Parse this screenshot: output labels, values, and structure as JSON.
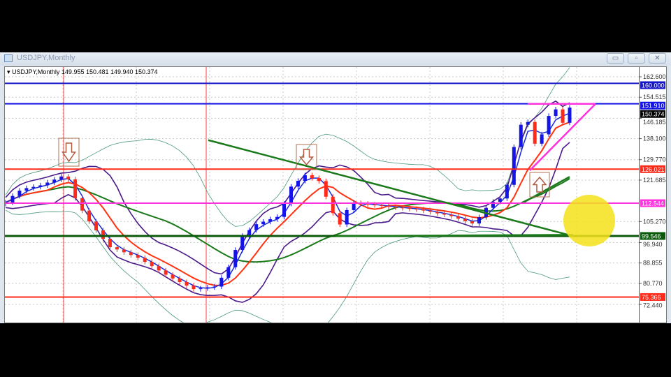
{
  "window": {
    "title": "USDJPY,Monthly",
    "buttons": {
      "minimize": "▭",
      "restore": "▫",
      "close": "✕"
    }
  },
  "header": {
    "symbol": "USDJPY,Monthly",
    "ohlc": "149.955 150.481 149.940 150.374"
  },
  "colors": {
    "up": "#1414e6",
    "down": "#ff2a1a",
    "ma_fast": "#1a2bd6",
    "ma_mid": "#ff3311",
    "ma_slow": "#1a7a1a",
    "band": "#4a9a78",
    "envelope": "#4b1a8a"
  },
  "chart_data": {
    "type": "candlestick",
    "title": "USDJPY,Monthly",
    "ylim": [
      64.355,
      166
    ],
    "y_ticks": [
      162.6,
      154.515,
      146.185,
      138.1,
      129.77,
      121.685,
      105.27,
      96.94,
      88.855,
      80.77,
      72.44
    ],
    "current_price": 150.374,
    "close": [
      112.8,
      115.4,
      117.5,
      118.5,
      119.0,
      119.6,
      120.7,
      121.9,
      123.1,
      122.0,
      114.5,
      109.6,
      105.3,
      101.8,
      98.4,
      95.1,
      94.2,
      93.1,
      92.0,
      90.9,
      89.3,
      87.6,
      85.9,
      84.2,
      82.7,
      81.3,
      79.9,
      78.5,
      78.8,
      79.2,
      79.5,
      83.0,
      87.2,
      94.0,
      99.6,
      101.9,
      104.2,
      105.2,
      106.2,
      107.1,
      112.3,
      119.1,
      121.4,
      123.6,
      122.5,
      121.3,
      115.1,
      108.6,
      104.1,
      109.8,
      112.6,
      112.3,
      112.0,
      111.7,
      111.5,
      111.1,
      110.8,
      110.6,
      110.3,
      110.1,
      109.6,
      109.1,
      108.5,
      108.0,
      107.4,
      106.4,
      105.4,
      104.5,
      107.0,
      110.7,
      113.1,
      114.4,
      119.8,
      134.8,
      143.6,
      144.7,
      136.1,
      139.8,
      147.1,
      149.7,
      144.4,
      150.4
    ],
    "horizontal_levels": [
      {
        "price": "160.000",
        "color": "#1414c8"
      },
      {
        "price": "151.910",
        "color": "#1414e6"
      },
      {
        "price": "126.021",
        "color": "#ff2a1a"
      },
      {
        "price": "112.544",
        "color": "#ff33dd"
      },
      {
        "price": "99.546",
        "color": "#0b5a0b"
      },
      {
        "price": "75.366",
        "color": "#ff2a1a"
      }
    ],
    "trendlines": [
      {
        "from": [
          298,
          137.5
        ],
        "to": [
          820,
          99.5
        ],
        "color": "#1a7a1a"
      },
      {
        "from": [
          480,
          99.5
        ],
        "to": [
          820,
          100
        ],
        "color": "#1a7a1a"
      },
      {
        "from": [
          750,
          113
        ],
        "to": [
          815,
          123
        ],
        "color": "#1a7a1a"
      },
      {
        "from": [
          755,
          151.9
        ],
        "to": [
          852,
          151.9
        ],
        "color": "#ff33dd"
      },
      {
        "from": [
          758,
          125.5
        ],
        "to": [
          852,
          151.9
        ],
        "color": "#ff33dd"
      }
    ],
    "arrows": [
      {
        "dir": "down"
      },
      {
        "dir": "down"
      },
      {
        "dir": "up"
      }
    ],
    "highlight": "yellow-circle"
  }
}
